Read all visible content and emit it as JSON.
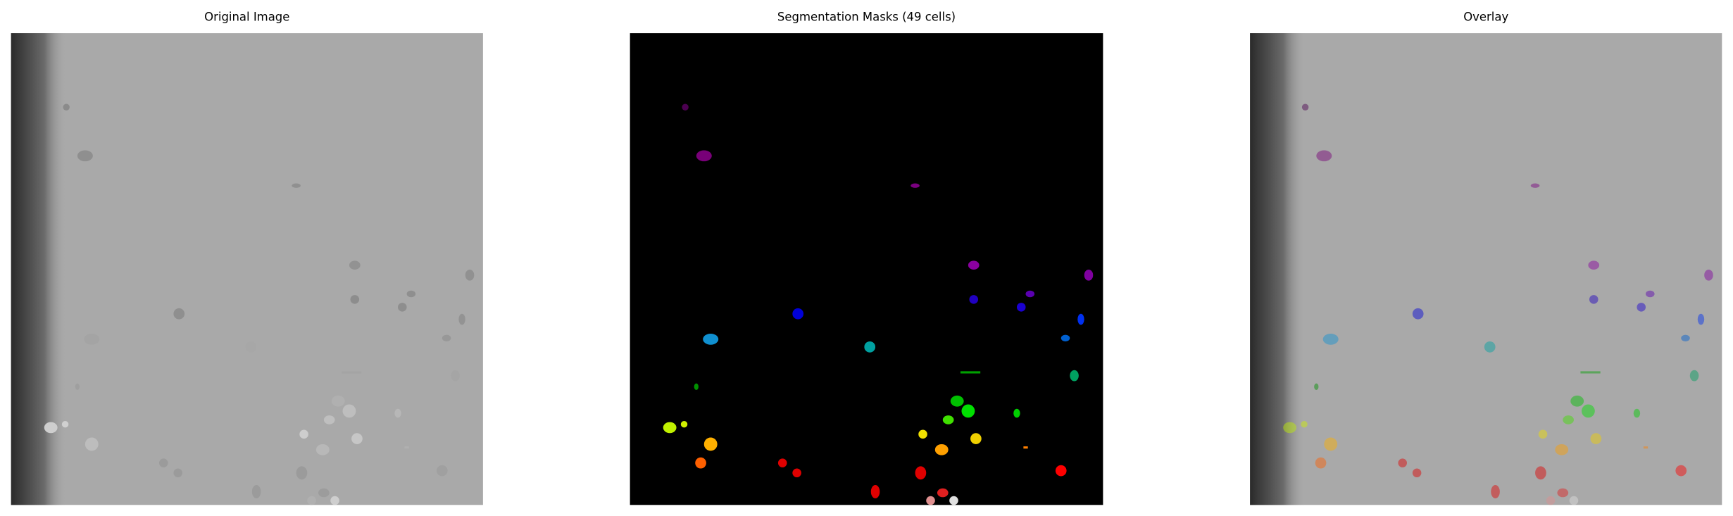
{
  "panels": [
    {
      "title": "Original Image"
    },
    {
      "title": "Segmentation Masks (49 cells)"
    },
    {
      "title": "Overlay"
    }
  ]
}
